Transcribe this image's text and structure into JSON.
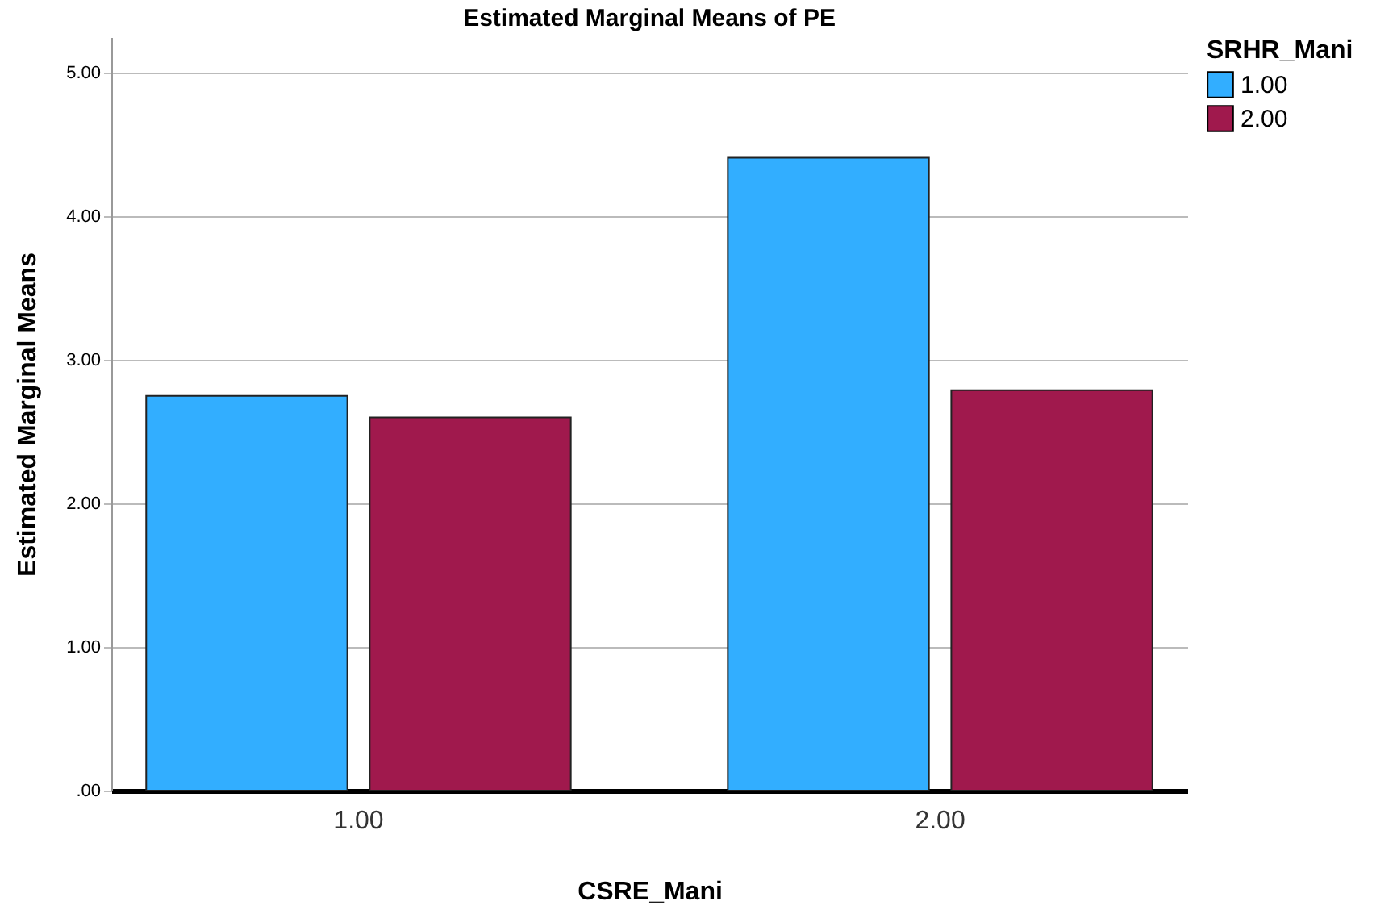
{
  "chart_data": {
    "type": "bar",
    "title": "Estimated Marginal Means of PE",
    "xlabel": "CSRE_Mani",
    "ylabel": "Estimated Marginal Means",
    "legend_title": "SRHR_Mani",
    "categories": [
      "1.00",
      "2.00"
    ],
    "series": [
      {
        "name": "1.00",
        "color": "#32aeff",
        "values": [
          2.75,
          4.41
        ]
      },
      {
        "name": "2.00",
        "color": "#a0194d",
        "values": [
          2.6,
          2.79
        ]
      }
    ],
    "ylim": [
      0,
      5.25
    ],
    "yticks": [
      {
        "value": 0,
        "label": ".00"
      },
      {
        "value": 1,
        "label": "1.00"
      },
      {
        "value": 2,
        "label": "2.00"
      },
      {
        "value": 3,
        "label": "3.00"
      },
      {
        "value": 4,
        "label": "4.00"
      },
      {
        "value": 5,
        "label": "5.00"
      }
    ],
    "grid": "y",
    "legend": "top right"
  }
}
